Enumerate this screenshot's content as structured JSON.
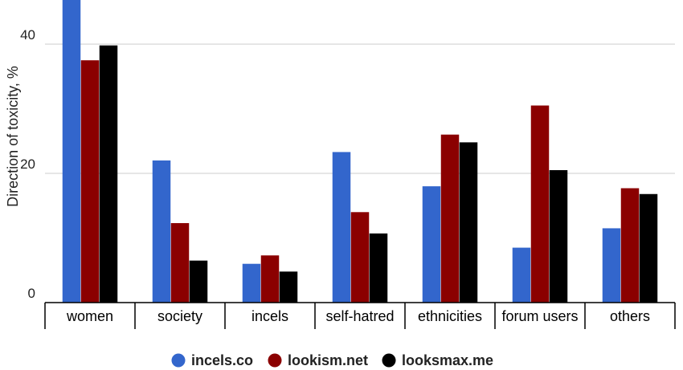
{
  "chart_data": {
    "type": "bar",
    "title": "",
    "xlabel": "",
    "ylabel": "Direction of toxicity, %",
    "ylim": [
      0,
      46.5
    ],
    "yticks": [
      0,
      20,
      40
    ],
    "grid": true,
    "legend_position": "bottom",
    "categories": [
      "women",
      "society",
      "incels",
      "self-hatred",
      "ethnicities",
      "forum users",
      "others"
    ],
    "series": [
      {
        "name": "incels.co",
        "color": "#3366cc",
        "values": [
          47,
          22,
          6,
          23.3,
          18,
          8.5,
          11.5
        ]
      },
      {
        "name": "lookism.net",
        "color": "#8b0000",
        "values": [
          37.5,
          12.3,
          7.3,
          14,
          26,
          30.5,
          17.7
        ]
      },
      {
        "name": "looksmax.me",
        "color": "#000000",
        "values": [
          39.8,
          6.5,
          4.8,
          10.7,
          24.8,
          20.5,
          16.8
        ]
      }
    ]
  }
}
